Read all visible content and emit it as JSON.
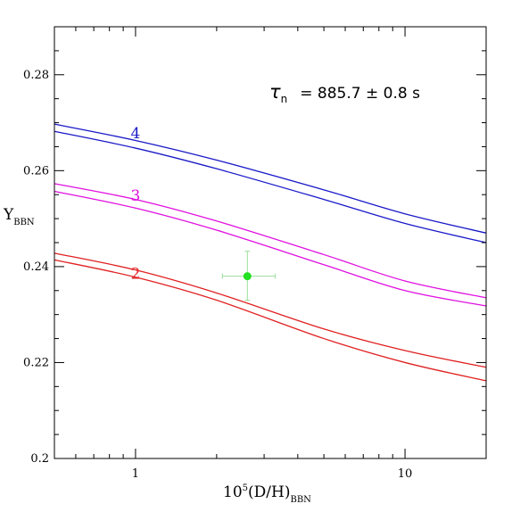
{
  "chart_data": {
    "type": "line",
    "xscale": "log",
    "xlim": [
      0.5,
      20
    ],
    "ylim": [
      0.2,
      0.29
    ],
    "x_ticks": [
      1,
      10
    ],
    "y_ticks": [
      0.2,
      0.22,
      0.24,
      0.26,
      0.28
    ],
    "x_tick_labels": [
      "1",
      "10"
    ],
    "y_tick_labels": [
      "0.2",
      "0.22",
      "0.24",
      "0.26",
      "0.28"
    ],
    "xlabel": {
      "main": "10",
      "sup": "5",
      "rest": "(D/H)",
      "sub": "BBN"
    },
    "ylabel": {
      "main": "Y",
      "sub": "BBN"
    },
    "annotation": {
      "symbol": "τ",
      "sub": "n",
      "text": "= 885.7 ± 0.8 s"
    },
    "curve_groups": [
      {
        "label": "4",
        "color": "#1a1ac8",
        "label_at": [
          1.0,
          0.2668
        ],
        "series": [
          {
            "x": [
              0.5,
              1,
              2,
              5,
              10,
              20
            ],
            "y": [
              0.2697,
              0.2663,
              0.2622,
              0.256,
              0.251,
              0.247
            ]
          },
          {
            "x": [
              0.5,
              1,
              2,
              5,
              10,
              20
            ],
            "y": [
              0.2682,
              0.2647,
              0.2604,
              0.254,
              0.249,
              0.245
            ]
          }
        ]
      },
      {
        "label": "3",
        "color": "#e010e0",
        "label_at": [
          1.0,
          0.2537
        ],
        "series": [
          {
            "x": [
              0.5,
              1,
              2,
              5,
              10,
              20
            ],
            "y": [
              0.2573,
              0.254,
              0.2495,
              0.2425,
              0.237,
              0.2335
            ]
          },
          {
            "x": [
              0.5,
              1,
              2,
              5,
              10,
              20
            ],
            "y": [
              0.2557,
              0.2522,
              0.2476,
              0.2404,
              0.235,
              0.2318
            ]
          }
        ]
      },
      {
        "label": "2",
        "color": "#e02020",
        "label_at": [
          1.0,
          0.2375
        ],
        "series": [
          {
            "x": [
              0.5,
              1,
              2,
              5,
              10,
              20
            ],
            "y": [
              0.2428,
              0.2393,
              0.2345,
              0.227,
              0.2225,
              0.219
            ]
          },
          {
            "x": [
              0.5,
              1,
              2,
              5,
              10,
              20
            ],
            "y": [
              0.2414,
              0.2378,
              0.233,
              0.225,
              0.22,
              0.2162
            ]
          }
        ]
      }
    ],
    "data_point": {
      "x": 2.6,
      "y": 0.238,
      "x_err": [
        2.1,
        3.3
      ],
      "y_err": [
        0.233,
        0.2432
      ],
      "color": "#22e022",
      "errorbar_color": "#9adf9a"
    }
  }
}
